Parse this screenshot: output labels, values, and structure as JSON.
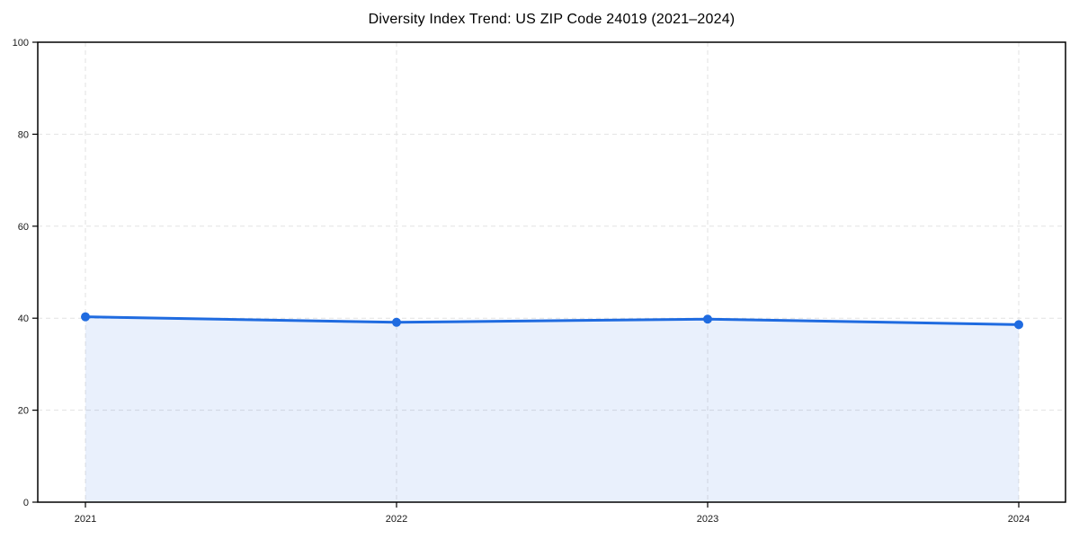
{
  "chart_data": {
    "type": "line",
    "title": "Diversity Index Trend: US ZIP Code 24019 (2021–2024)",
    "categories": [
      "2021",
      "2022",
      "2023",
      "2024"
    ],
    "series": [
      {
        "name": "Diversity Index",
        "values": [
          40.3,
          39.1,
          39.8,
          38.6
        ]
      }
    ],
    "xlabel": "",
    "ylabel": "",
    "ylim": [
      0,
      100
    ],
    "yticks": [
      0,
      20,
      40,
      60,
      80,
      100
    ],
    "grid": "dashed",
    "legend_position": "none",
    "area_fill": true,
    "marker": "circle",
    "colors": {
      "line": "#1F6BE0",
      "marker": "#1F6BE0",
      "area": "#1F6BE019",
      "gridline": "#E2E2E2",
      "axis": "#000000",
      "tick_label": "#1A1A1A",
      "title": "#000000"
    }
  }
}
